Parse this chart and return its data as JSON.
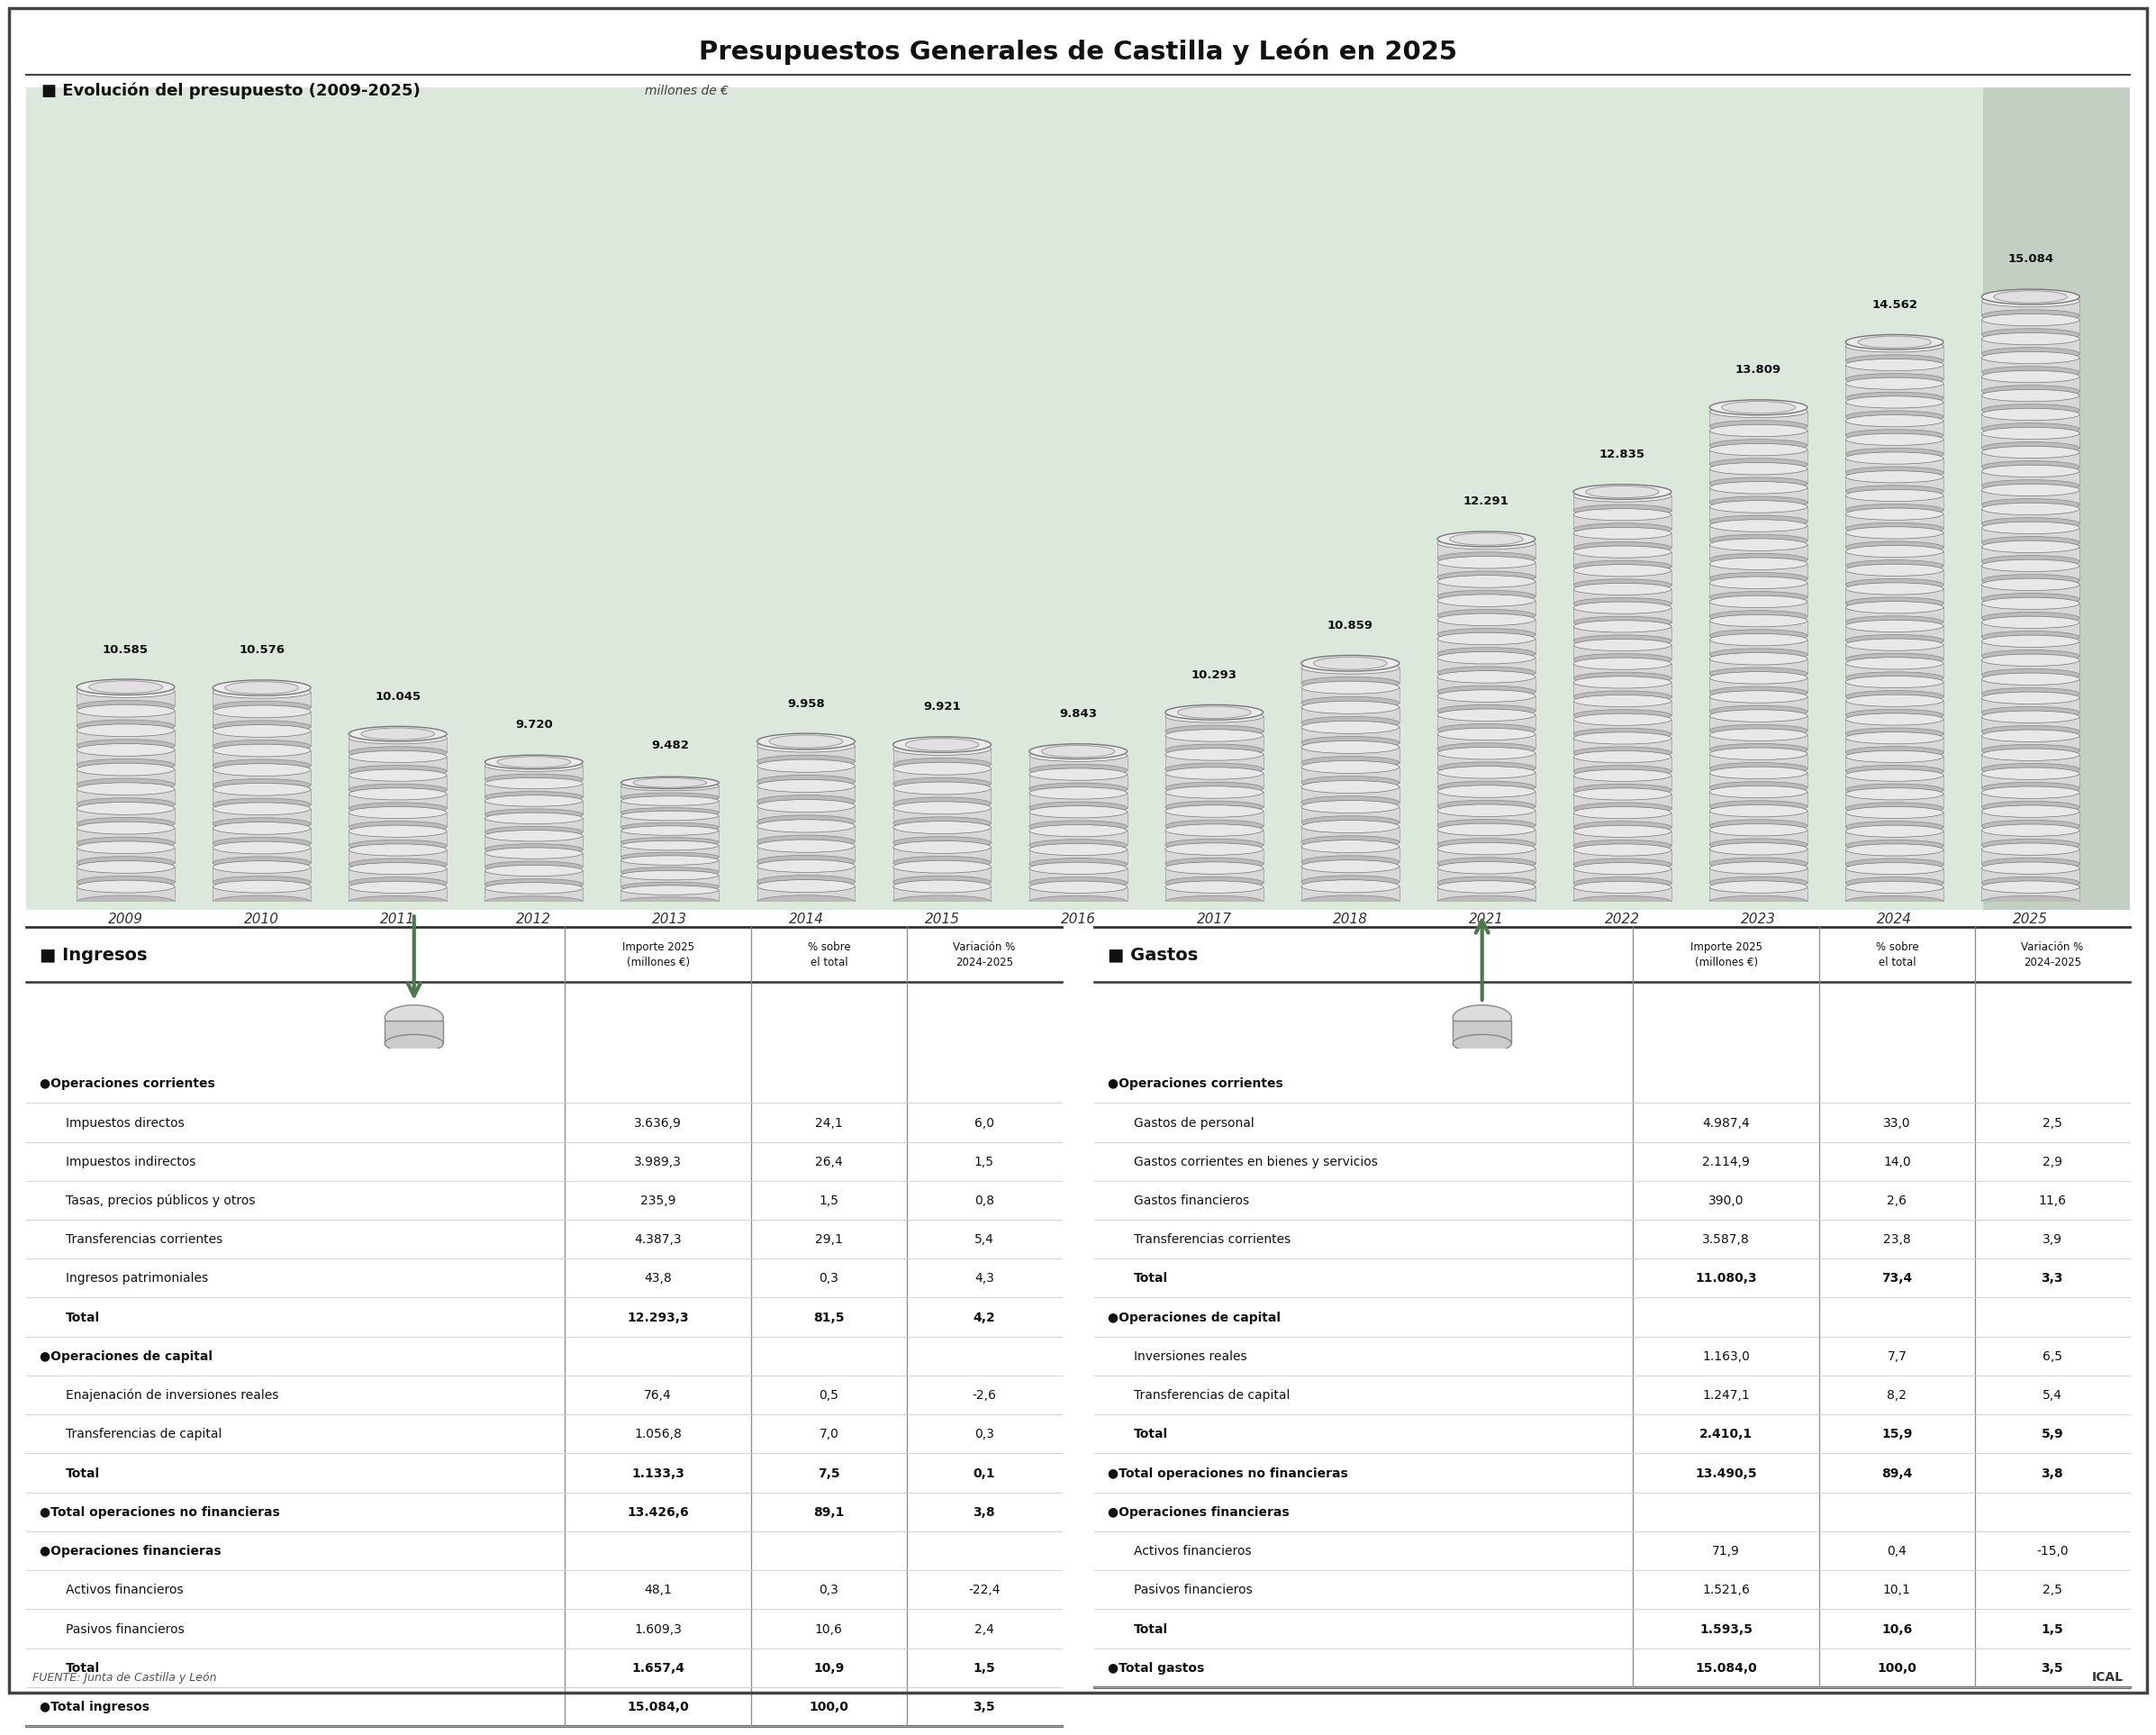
{
  "title": "Presupuestos Generales de Castilla y León en 2025",
  "background_color": "#ffffff",
  "border_color": "#444444",
  "chart_section": {
    "label": "Evolución del presupuesto (2009-2025)",
    "unit_label": "millones de €",
    "years": [
      "2009",
      "2010",
      "2011",
      "2012",
      "2013",
      "2014",
      "2015",
      "2016",
      "2017",
      "2018",
      "2021",
      "2022",
      "2023",
      "2024",
      "2025"
    ],
    "values": [
      10585,
      10576,
      10045,
      9720,
      9482,
      9958,
      9921,
      9843,
      10293,
      10859,
      12291,
      12835,
      13809,
      14562,
      15084
    ],
    "labels": [
      "10.585",
      "10.576",
      "10.045",
      "9.720",
      "9.482",
      "9.958",
      "9.921",
      "9.843",
      "10.293",
      "10.859",
      "12.291",
      "12.835",
      "13.809",
      "14.562",
      "15.084"
    ],
    "bg_color": "#dde8dd",
    "highlight_bg": "#c4cfc4",
    "highlight_year": "2025"
  },
  "ingresos": {
    "section_title": "Ingresos",
    "col_headers": [
      "Importe 2025\n(millones €)",
      "% sobre\nel total",
      "Variación %\n2024-2025"
    ],
    "rows": [
      {
        "label": "●Operaciones corrientes",
        "bold": true,
        "category": true,
        "total_ops": false,
        "values": [
          "",
          "",
          ""
        ]
      },
      {
        "label": "Impuestos directos",
        "bold": false,
        "category": false,
        "total_ops": false,
        "values": [
          "3.636,9",
          "24,1",
          "6,0"
        ]
      },
      {
        "label": "Impuestos indirectos",
        "bold": false,
        "category": false,
        "total_ops": false,
        "values": [
          "3.989,3",
          "26,4",
          "1,5"
        ]
      },
      {
        "label": "Tasas, precios públicos y otros",
        "bold": false,
        "category": false,
        "total_ops": false,
        "values": [
          "235,9",
          "1,5",
          "0,8"
        ]
      },
      {
        "label": "Transferencias corrientes",
        "bold": false,
        "category": false,
        "total_ops": false,
        "values": [
          "4.387,3",
          "29,1",
          "5,4"
        ]
      },
      {
        "label": "Ingresos patrimoniales",
        "bold": false,
        "category": false,
        "total_ops": false,
        "values": [
          "43,8",
          "0,3",
          "4,3"
        ]
      },
      {
        "label": "Total",
        "bold": true,
        "category": false,
        "total_ops": false,
        "values": [
          "12.293,3",
          "81,5",
          "4,2"
        ]
      },
      {
        "label": "●Operaciones de capital",
        "bold": true,
        "category": true,
        "total_ops": false,
        "values": [
          "",
          "",
          ""
        ]
      },
      {
        "label": "Enajenación de inversiones reales",
        "bold": false,
        "category": false,
        "total_ops": false,
        "values": [
          "76,4",
          "0,5",
          "-2,6"
        ]
      },
      {
        "label": "Transferencias de capital",
        "bold": false,
        "category": false,
        "total_ops": false,
        "values": [
          "1.056,8",
          "7,0",
          "0,3"
        ]
      },
      {
        "label": "Total",
        "bold": true,
        "category": false,
        "total_ops": false,
        "values": [
          "1.133,3",
          "7,5",
          "0,1"
        ]
      },
      {
        "label": "●Total operaciones no financieras",
        "bold": true,
        "category": true,
        "total_ops": true,
        "values": [
          "13.426,6",
          "89,1",
          "3,8"
        ]
      },
      {
        "label": "●Operaciones financieras",
        "bold": true,
        "category": true,
        "total_ops": false,
        "values": [
          "",
          "",
          ""
        ]
      },
      {
        "label": "Activos financieros",
        "bold": false,
        "category": false,
        "total_ops": false,
        "values": [
          "48,1",
          "0,3",
          "-22,4"
        ]
      },
      {
        "label": "Pasivos financieros",
        "bold": false,
        "category": false,
        "total_ops": false,
        "values": [
          "1.609,3",
          "10,6",
          "2,4"
        ]
      },
      {
        "label": "Total",
        "bold": true,
        "category": false,
        "total_ops": false,
        "values": [
          "1.657,4",
          "10,9",
          "1,5"
        ]
      },
      {
        "label": "●Total ingresos",
        "bold": true,
        "category": true,
        "total_ops": true,
        "values": [
          "15.084,0",
          "100,0",
          "3,5"
        ]
      }
    ]
  },
  "gastos": {
    "section_title": "Gastos",
    "col_headers": [
      "Importe 2025\n(millones €)",
      "% sobre\nel total",
      "Variación %\n2024-2025"
    ],
    "rows": [
      {
        "label": "●Operaciones corrientes",
        "bold": true,
        "category": true,
        "total_ops": false,
        "values": [
          "",
          "",
          ""
        ]
      },
      {
        "label": "Gastos de personal",
        "bold": false,
        "category": false,
        "total_ops": false,
        "values": [
          "4.987,4",
          "33,0",
          "2,5"
        ]
      },
      {
        "label": "Gastos corrientes en bienes y servicios",
        "bold": false,
        "category": false,
        "total_ops": false,
        "values": [
          "2.114,9",
          "14,0",
          "2,9"
        ]
      },
      {
        "label": "Gastos financieros",
        "bold": false,
        "category": false,
        "total_ops": false,
        "values": [
          "390,0",
          "2,6",
          "11,6"
        ]
      },
      {
        "label": "Transferencias corrientes",
        "bold": false,
        "category": false,
        "total_ops": false,
        "values": [
          "3.587,8",
          "23,8",
          "3,9"
        ]
      },
      {
        "label": "Total",
        "bold": true,
        "category": false,
        "total_ops": false,
        "values": [
          "11.080,3",
          "73,4",
          "3,3"
        ]
      },
      {
        "label": "●Operaciones de capital",
        "bold": true,
        "category": true,
        "total_ops": false,
        "values": [
          "",
          "",
          ""
        ]
      },
      {
        "label": "Inversiones reales",
        "bold": false,
        "category": false,
        "total_ops": false,
        "values": [
          "1.163,0",
          "7,7",
          "6,5"
        ]
      },
      {
        "label": "Transferencias de capital",
        "bold": false,
        "category": false,
        "total_ops": false,
        "values": [
          "1.247,1",
          "8,2",
          "5,4"
        ]
      },
      {
        "label": "Total",
        "bold": true,
        "category": false,
        "total_ops": false,
        "values": [
          "2.410,1",
          "15,9",
          "5,9"
        ]
      },
      {
        "label": "●Total operaciones no financieras",
        "bold": true,
        "category": true,
        "total_ops": true,
        "values": [
          "13.490,5",
          "89,4",
          "3,8"
        ]
      },
      {
        "label": "●Operaciones financieras",
        "bold": true,
        "category": true,
        "total_ops": false,
        "values": [
          "",
          "",
          ""
        ]
      },
      {
        "label": "Activos financieros",
        "bold": false,
        "category": false,
        "total_ops": false,
        "values": [
          "71,9",
          "0,4",
          "-15,0"
        ]
      },
      {
        "label": "Pasivos financieros",
        "bold": false,
        "category": false,
        "total_ops": false,
        "values": [
          "1.521,6",
          "10,1",
          "2,5"
        ]
      },
      {
        "label": "Total",
        "bold": true,
        "category": false,
        "total_ops": false,
        "values": [
          "1.593,5",
          "10,6",
          "1,5"
        ]
      },
      {
        "label": "●Total gastos",
        "bold": true,
        "category": true,
        "total_ops": true,
        "values": [
          "15.084,0",
          "100,0",
          "3,5"
        ]
      }
    ]
  },
  "footer_left": "FUENTE: Junta de Castilla y León",
  "footer_right": "ICAL"
}
